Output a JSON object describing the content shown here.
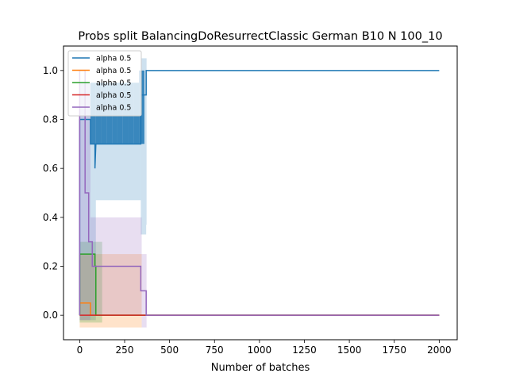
{
  "chart_data": {
    "type": "line",
    "title": "Probs split BalancingDoResurrectClassic German B10 N 100_10",
    "xlabel": "Number of batches",
    "ylabel": "",
    "xlim": [
      -90,
      2100
    ],
    "ylim": [
      -0.1,
      1.1
    ],
    "xticks": [
      0,
      250,
      500,
      750,
      1000,
      1250,
      1500,
      1750,
      2000
    ],
    "yticks": [
      0.0,
      0.2,
      0.4,
      0.6,
      0.8,
      1.0
    ],
    "ytick_labels": [
      "0.0",
      "0.2",
      "0.4",
      "0.6",
      "0.8",
      "1.0"
    ],
    "legend_position": "top-left",
    "grid": false,
    "series": [
      {
        "name": "alpha 0.5",
        "color": "#1f77b4",
        "points": [
          [
            0,
            0.0
          ],
          [
            0,
            0.8
          ],
          [
            60,
            0.8
          ],
          [
            60,
            0.7
          ],
          [
            85,
            0.7
          ],
          [
            85,
            0.6
          ],
          [
            90,
            0.7
          ],
          [
            340,
            0.7
          ],
          [
            340,
            0.9
          ],
          [
            370,
            0.9
          ],
          [
            370,
            1.0
          ],
          [
            2000,
            1.0
          ]
        ],
        "band": [
          [
            0,
            -0.02,
            0.95
          ],
          [
            90,
            0.47,
            0.95
          ],
          [
            340,
            0.33,
            1.05
          ],
          [
            370,
            0.37,
            1.05
          ],
          [
            372,
            1.0,
            1.0
          ]
        ],
        "hatch": [
          [
            60,
            0.7,
            0.95
          ],
          [
            90,
            0.7,
            0.95
          ],
          [
            120,
            0.7,
            0.95
          ],
          [
            150,
            0.7,
            0.95
          ],
          [
            180,
            0.7,
            0.95
          ],
          [
            210,
            0.7,
            0.95
          ],
          [
            240,
            0.7,
            0.95
          ],
          [
            270,
            0.7,
            0.95
          ],
          [
            300,
            0.7,
            0.95
          ],
          [
            330,
            0.7,
            1.0
          ],
          [
            360,
            0.9,
            1.05
          ]
        ]
      },
      {
        "name": "alpha 0.5",
        "color": "#ff7f0e",
        "points": [
          [
            0,
            0.0
          ],
          [
            0,
            0.05
          ],
          [
            60,
            0.05
          ],
          [
            60,
            0.0
          ],
          [
            2000,
            0.0
          ]
        ],
        "band": [
          [
            0,
            -0.05,
            0.25
          ],
          [
            340,
            -0.05,
            0.25
          ],
          [
            345,
            0.0,
            0.0
          ]
        ],
        "hatch": []
      },
      {
        "name": "alpha 0.5",
        "color": "#2ca02c",
        "points": [
          [
            0,
            0.0
          ],
          [
            0,
            0.25
          ],
          [
            85,
            0.25
          ],
          [
            85,
            0.2
          ],
          [
            90,
            0.2
          ],
          [
            90,
            0.0
          ],
          [
            2000,
            0.0
          ]
        ],
        "band": [
          [
            0,
            -0.03,
            0.3
          ],
          [
            120,
            -0.03,
            0.3
          ],
          [
            125,
            0.0,
            0.0
          ]
        ],
        "hatch": []
      },
      {
        "name": "alpha 0.5",
        "color": "#d62728",
        "points": [
          [
            0,
            0.0
          ],
          [
            2000,
            0.0
          ]
        ],
        "band": [],
        "hatch": []
      },
      {
        "name": "alpha 0.5",
        "color": "#9467bd",
        "points": [
          [
            0,
            0.0
          ],
          [
            0,
            1.0
          ],
          [
            30,
            1.0
          ],
          [
            30,
            0.5
          ],
          [
            50,
            0.5
          ],
          [
            50,
            0.3
          ],
          [
            70,
            0.3
          ],
          [
            70,
            0.2
          ],
          [
            340,
            0.2
          ],
          [
            340,
            0.1
          ],
          [
            370,
            0.1
          ],
          [
            370,
            0.0
          ],
          [
            2000,
            0.0
          ]
        ],
        "band": [
          [
            0,
            -0.02,
            0.95
          ],
          [
            60,
            0.0,
            0.4
          ],
          [
            340,
            0.0,
            0.4
          ],
          [
            345,
            -0.05,
            0.25
          ],
          [
            370,
            -0.05,
            0.25
          ],
          [
            372,
            0.0,
            0.0
          ]
        ],
        "hatch": []
      }
    ]
  }
}
